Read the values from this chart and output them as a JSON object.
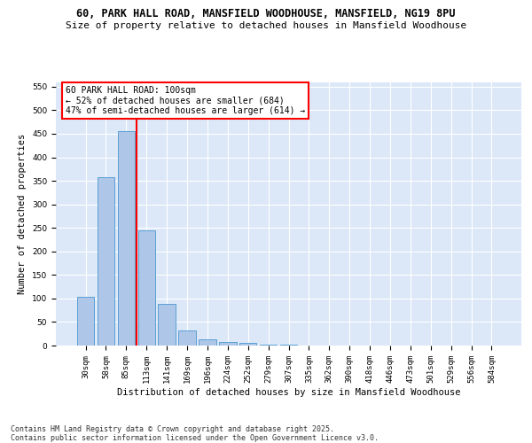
{
  "title_line1": "60, PARK HALL ROAD, MANSFIELD WOODHOUSE, MANSFIELD, NG19 8PU",
  "title_line2": "Size of property relative to detached houses in Mansfield Woodhouse",
  "xlabel": "Distribution of detached houses by size in Mansfield Woodhouse",
  "ylabel": "Number of detached properties",
  "categories": [
    "30sqm",
    "58sqm",
    "85sqm",
    "113sqm",
    "141sqm",
    "169sqm",
    "196sqm",
    "224sqm",
    "252sqm",
    "279sqm",
    "307sqm",
    "335sqm",
    "362sqm",
    "390sqm",
    "418sqm",
    "446sqm",
    "473sqm",
    "501sqm",
    "529sqm",
    "556sqm",
    "584sqm"
  ],
  "values": [
    103,
    357,
    455,
    245,
    88,
    32,
    13,
    8,
    5,
    2,
    1,
    0,
    0,
    0,
    0,
    0,
    0,
    0,
    0,
    0,
    0
  ],
  "bar_color": "#aec6e8",
  "bar_edge_color": "#5a9fd4",
  "vline_color": "red",
  "annotation_text": "60 PARK HALL ROAD: 100sqm\n← 52% of detached houses are smaller (684)\n47% of semi-detached houses are larger (614) →",
  "box_edge_color": "red",
  "ylim": [
    0,
    560
  ],
  "yticks": [
    0,
    50,
    100,
    150,
    200,
    250,
    300,
    350,
    400,
    450,
    500,
    550
  ],
  "bg_color": "#dce8f8",
  "footer": "Contains HM Land Registry data © Crown copyright and database right 2025.\nContains public sector information licensed under the Open Government Licence v3.0.",
  "title_fontsize": 8.5,
  "subtitle_fontsize": 8.0,
  "axis_label_fontsize": 7.5,
  "tick_fontsize": 6.5,
  "annotation_fontsize": 7.0,
  "footer_fontsize": 6.0
}
